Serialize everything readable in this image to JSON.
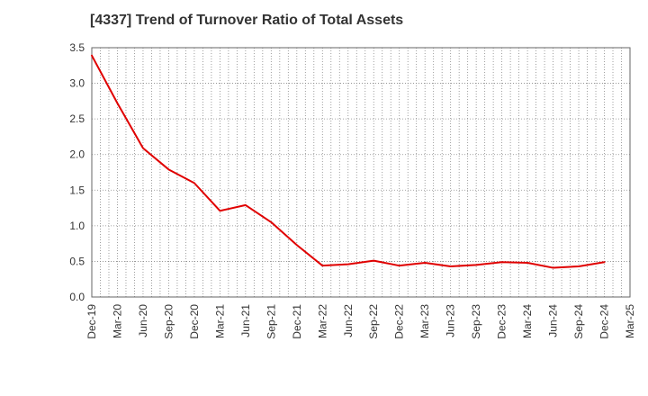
{
  "chart_data": {
    "type": "line",
    "title": "[4337]  Trend of Turnover Ratio of Total Assets",
    "xlabel": "",
    "ylabel": "",
    "x_tick_labels": [
      "Dec-19",
      "Mar-20",
      "Jun-20",
      "Sep-20",
      "Dec-20",
      "Mar-21",
      "Jun-21",
      "Sep-21",
      "Dec-21",
      "Mar-22",
      "Jun-22",
      "Sep-22",
      "Dec-22",
      "Mar-23",
      "Jun-23",
      "Sep-23",
      "Dec-23",
      "Mar-24",
      "Jun-24",
      "Sep-24",
      "Dec-24",
      "Mar-25"
    ],
    "y_tick_labels": [
      "0.0",
      "0.5",
      "1.0",
      "1.5",
      "2.0",
      "2.5",
      "3.0",
      "3.5"
    ],
    "ylim": [
      0,
      3.5
    ],
    "grid": true,
    "series": [
      {
        "color": "#e00000",
        "x": [
          "Dec-19",
          "Mar-20",
          "Jun-20",
          "Sep-20",
          "Dec-20",
          "Mar-21",
          "Jun-21",
          "Sep-21",
          "Dec-21",
          "Mar-22",
          "Jun-22",
          "Sep-22",
          "Dec-22",
          "Mar-23",
          "Jun-23",
          "Sep-23",
          "Dec-23",
          "Mar-24",
          "Jun-24",
          "Sep-24",
          "Dec-24"
        ],
        "values": [
          3.39,
          2.72,
          2.09,
          1.79,
          1.6,
          1.21,
          1.29,
          1.05,
          0.73,
          0.44,
          0.46,
          0.51,
          0.44,
          0.48,
          0.43,
          0.45,
          0.49,
          0.48,
          0.41,
          0.43,
          0.49
        ]
      }
    ]
  }
}
